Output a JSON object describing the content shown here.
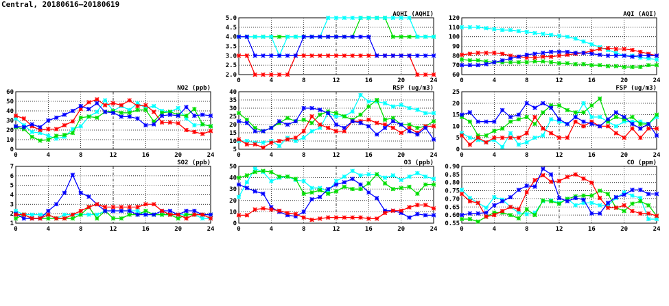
{
  "title": "Central, 20180616–20180619",
  "chart_data": [
    {
      "type": "line",
      "title": "AQHI (AQHI)",
      "ylim": [
        2.0,
        5.0
      ],
      "yticks": [
        "2.0",
        "2.5",
        "3.0",
        "3.5",
        "4.0",
        "4.5",
        "5.0"
      ],
      "xlim": [
        0,
        24
      ],
      "xticks": [
        "0",
        "4",
        "8",
        "12",
        "16",
        "20",
        "24"
      ],
      "grid": true,
      "series": [
        {
          "color": "#ff0000",
          "values": [
            3,
            3,
            2,
            2,
            2,
            2,
            2,
            3,
            3,
            3,
            3,
            3,
            3,
            3,
            3,
            3,
            3,
            3,
            3,
            3,
            3,
            3,
            2,
            2,
            2
          ]
        },
        {
          "color": "#00dd00",
          "values": [
            4,
            4,
            4,
            4,
            4,
            4,
            4,
            4,
            4,
            4,
            4,
            4,
            4,
            4,
            4,
            5,
            5,
            5,
            5,
            4,
            4,
            4,
            4,
            4,
            4
          ]
        },
        {
          "color": "#00ffff",
          "values": [
            4,
            4,
            4,
            4,
            4,
            3,
            4,
            4,
            4,
            4,
            4,
            5,
            5,
            5,
            5,
            5,
            5,
            5,
            5,
            5,
            5,
            5,
            4,
            4,
            4
          ]
        },
        {
          "color": "#0000ff",
          "values": [
            4,
            4,
            3,
            3,
            3,
            3,
            3,
            3,
            4,
            4,
            4,
            4,
            4,
            4,
            4,
            4,
            4,
            3,
            3,
            3,
            3,
            3,
            3,
            3,
            3
          ]
        }
      ]
    },
    {
      "type": "line",
      "title": "AQI (AQI)",
      "ylim": [
        60,
        120
      ],
      "yticks": [
        "60",
        "70",
        "80",
        "90",
        "100",
        "110",
        "120"
      ],
      "xlim": [
        0,
        24
      ],
      "xticks": [
        "0",
        "4",
        "8",
        "12",
        "16",
        "20",
        "24"
      ],
      "grid": true,
      "series": [
        {
          "color": "#00ffff",
          "values": [
            110,
            110,
            110,
            109,
            108,
            107,
            107,
            106,
            105,
            104,
            103,
            102,
            101,
            100,
            98,
            95,
            92,
            89,
            86,
            83,
            80,
            80,
            78,
            77,
            76
          ]
        },
        {
          "color": "#00dd00",
          "values": [
            76,
            75,
            75,
            74,
            73,
            73,
            73,
            73,
            73,
            74,
            74,
            73,
            72,
            72,
            71,
            71,
            70,
            70,
            69,
            69,
            68,
            68,
            68,
            70,
            70
          ]
        },
        {
          "color": "#ff0000",
          "values": [
            81,
            82,
            83,
            83,
            83,
            82,
            80,
            79,
            78,
            78,
            79,
            79,
            80,
            81,
            82,
            83,
            85,
            87,
            88,
            87,
            87,
            86,
            84,
            82,
            80
          ]
        },
        {
          "color": "#0000ff",
          "values": [
            70,
            70,
            70,
            71,
            73,
            75,
            77,
            79,
            81,
            82,
            83,
            84,
            84,
            84,
            83,
            83,
            82,
            81,
            80,
            80,
            80,
            79,
            80,
            80,
            80
          ]
        }
      ]
    },
    {
      "type": "line",
      "title": "NO2 (ppb)",
      "ylim": [
        0,
        60
      ],
      "yticks": [
        "0",
        "10",
        "20",
        "30",
        "40",
        "50",
        "60"
      ],
      "xlim": [
        0,
        24
      ],
      "xticks": [
        "0",
        "4",
        "8",
        "12",
        "16",
        "20",
        "24"
      ],
      "grid": true,
      "series": [
        {
          "color": "#00ffff",
          "values": [
            32,
            25,
            18,
            17,
            14,
            11,
            13,
            21,
            24,
            34,
            39,
            51,
            40,
            45,
            41,
            48,
            43,
            45,
            40,
            39,
            43,
            32,
            25,
            26,
            24
          ]
        },
        {
          "color": "#00dd00",
          "values": [
            23,
            21,
            13,
            9,
            10,
            14,
            15,
            17,
            33,
            34,
            33,
            39,
            40,
            38,
            38,
            41,
            41,
            29,
            38,
            39,
            36,
            35,
            42,
            26,
            24
          ]
        },
        {
          "color": "#ff0000",
          "values": [
            35,
            32,
            24,
            20,
            21,
            21,
            25,
            29,
            42,
            49,
            52,
            46,
            48,
            46,
            51,
            45,
            46,
            39,
            28,
            28,
            27,
            20,
            18,
            16,
            19
          ]
        },
        {
          "color": "#0000ff",
          "values": [
            24,
            23,
            26,
            23,
            30,
            33,
            36,
            40,
            45,
            42,
            48,
            39,
            38,
            34,
            34,
            32,
            25,
            26,
            35,
            36,
            35,
            44,
            35,
            36,
            35
          ]
        }
      ]
    },
    {
      "type": "line",
      "title": "RSP (ug/m3)",
      "ylim": [
        5,
        40
      ],
      "yticks": [
        "5",
        "10",
        "15",
        "20",
        "25",
        "30",
        "35",
        "40"
      ],
      "xlim": [
        0,
        24
      ],
      "xticks": [
        "0",
        "4",
        "8",
        "12",
        "16",
        "20",
        "24"
      ],
      "grid": true,
      "series": [
        {
          "color": "#00ffff",
          "values": [
            10,
            10,
            9,
            9,
            10,
            7,
            12,
            10,
            12,
            16,
            18,
            27,
            25,
            25,
            28,
            38,
            34,
            34,
            33,
            31,
            32,
            30,
            29,
            27,
            27
          ]
        },
        {
          "color": "#00dd00",
          "values": [
            27,
            23,
            18,
            16,
            18,
            21,
            24,
            22,
            23,
            21,
            26,
            28,
            27,
            25,
            23,
            26,
            31,
            35,
            23,
            24,
            20,
            20,
            18,
            19,
            22
          ]
        },
        {
          "color": "#ff0000",
          "values": [
            11,
            8,
            8,
            6,
            9,
            10,
            11,
            12,
            16,
            25,
            20,
            18,
            16,
            16,
            22,
            22,
            23,
            21,
            20,
            18,
            15,
            18,
            15,
            19,
            19
          ]
        },
        {
          "color": "#0000ff",
          "values": [
            22,
            21,
            16,
            16,
            18,
            22,
            20,
            22,
            30,
            30,
            29,
            27,
            20,
            18,
            22,
            21,
            19,
            14,
            18,
            22,
            20,
            16,
            14,
            18,
            11
          ]
        }
      ]
    },
    {
      "type": "line",
      "title": "FSP (ug/m3)",
      "ylim": [
        0,
        25
      ],
      "yticks": [
        "0",
        "5",
        "10",
        "15",
        "20",
        "25"
      ],
      "xlim": [
        0,
        24
      ],
      "xticks": [
        "0",
        "4",
        "8",
        "12",
        "16",
        "20",
        "24"
      ],
      "grid": true,
      "series": [
        {
          "color": "#00ffff",
          "values": [
            7,
            5,
            4,
            3,
            4,
            1,
            7,
            2,
            3,
            5,
            6,
            13,
            12,
            11,
            14,
            20,
            14,
            14,
            12,
            10,
            12,
            12,
            12,
            11,
            14
          ]
        },
        {
          "color": "#00dd00",
          "values": [
            14,
            12,
            6,
            6,
            8,
            9,
            12,
            13,
            14,
            11,
            16,
            19,
            19,
            17,
            16,
            16,
            19,
            22,
            12,
            14,
            13,
            14,
            11,
            11,
            15
          ]
        },
        {
          "color": "#ff0000",
          "values": [
            6,
            2,
            5,
            3,
            5,
            5,
            5,
            5,
            7,
            14,
            9,
            7,
            5,
            5,
            12,
            10,
            12,
            10,
            10,
            7,
            5,
            9,
            5,
            9,
            9
          ]
        },
        {
          "color": "#0000ff",
          "values": [
            15,
            16,
            12,
            12,
            12,
            17,
            14,
            15,
            20,
            18,
            20,
            18,
            13,
            11,
            14,
            12,
            11,
            10,
            13,
            16,
            14,
            11,
            9,
            11,
            6
          ]
        }
      ]
    },
    {
      "type": "line",
      "title": "SO2 (ppb)",
      "ylim": [
        1,
        7
      ],
      "yticks": [
        "1",
        "2",
        "3",
        "4",
        "5",
        "6",
        "7"
      ],
      "xlim": [
        0,
        24
      ],
      "xticks": [
        "0",
        "4",
        "8",
        "12",
        "16",
        "20",
        "24"
      ],
      "grid": true,
      "series": [
        {
          "color": "#00ffff",
          "values": [
            2.3,
            1.9,
            1.9,
            1.9,
            1.9,
            1.5,
            1.9,
            1.9,
            1.9,
            1.9,
            1.9,
            2.3,
            2.3,
            2.3,
            2.3,
            2.3,
            1.9,
            1.9,
            1.9,
            1.9,
            1.9,
            1.9,
            1.9,
            1.5,
            1.5
          ]
        },
        {
          "color": "#00dd00",
          "values": [
            1.5,
            1.9,
            1.5,
            1.5,
            1.5,
            1.5,
            1.5,
            1.5,
            1.9,
            2.7,
            1.5,
            2.3,
            1.5,
            1.5,
            1.9,
            1.9,
            2.3,
            1.9,
            1.9,
            1.9,
            1.5,
            1.9,
            1.9,
            1.9,
            1.9
          ]
        },
        {
          "color": "#0000ff",
          "values": [
            2.0,
            1.5,
            1.5,
            1.5,
            2.3,
            3.0,
            4.2,
            6.1,
            4.2,
            3.8,
            3.0,
            2.3,
            2.3,
            2.3,
            2.3,
            1.9,
            1.9,
            1.9,
            2.3,
            2.3,
            1.9,
            2.3,
            2.3,
            1.9,
            1.9
          ]
        },
        {
          "color": "#ff0000",
          "values": [
            1.9,
            1.9,
            1.5,
            1.5,
            1.9,
            1.5,
            1.5,
            1.9,
            2.3,
            2.7,
            3.0,
            2.7,
            2.7,
            2.7,
            2.7,
            2.7,
            3.0,
            3.0,
            2.3,
            1.9,
            1.9,
            1.5,
            1.9,
            1.9,
            1.5
          ]
        }
      ]
    },
    {
      "type": "line",
      "title": "O3 (ppb)",
      "ylim": [
        0,
        50
      ],
      "yticks": [
        "0",
        "10",
        "20",
        "30",
        "40",
        "50"
      ],
      "xlim": [
        0,
        24
      ],
      "xticks": [
        "0",
        "4",
        "8",
        "12",
        "16",
        "20",
        "24"
      ],
      "grid": true,
      "series": [
        {
          "color": "#00ffff",
          "values": [
            23,
            36,
            48,
            45,
            37,
            40,
            41,
            38,
            37,
            31,
            31,
            28,
            37,
            41,
            46,
            42,
            43,
            43,
            40,
            42,
            38,
            41,
            44,
            41,
            39
          ]
        },
        {
          "color": "#00dd00",
          "values": [
            40,
            42,
            45,
            46,
            45,
            41,
            41,
            39,
            26,
            27,
            29,
            26,
            28,
            32,
            30,
            30,
            35,
            43,
            35,
            30,
            31,
            32,
            26,
            34,
            34
          ]
        },
        {
          "color": "#0000ff",
          "values": [
            34,
            31,
            28,
            26,
            14,
            10,
            7,
            6,
            10,
            21,
            23,
            30,
            34,
            36,
            39,
            34,
            27,
            22,
            11,
            11,
            9,
            5,
            8,
            7,
            7
          ]
        },
        {
          "color": "#ff0000",
          "values": [
            7,
            7,
            12,
            13,
            12,
            11,
            9,
            8,
            5,
            3,
            4,
            5,
            5,
            5,
            5,
            5,
            4,
            4,
            9,
            11,
            11,
            14,
            16,
            16,
            13
          ]
        }
      ]
    },
    {
      "type": "line",
      "title": "CO (ppm)",
      "ylim": [
        0.55,
        0.9
      ],
      "yticks": [
        "0.55",
        "0.60",
        "0.65",
        "0.70",
        "0.75",
        "0.80",
        "0.85",
        "0.90"
      ],
      "xlim": [
        0,
        24
      ],
      "xticks": [
        "0",
        "4",
        "8",
        "12",
        "16",
        "20",
        "24"
      ],
      "grid": true,
      "series": [
        {
          "color": "#00ffff",
          "values": [
            0.755,
            0.705,
            0.675,
            0.645,
            0.71,
            0.695,
            0.65,
            0.615,
            0.605,
            0.615,
            0.685,
            0.69,
            0.675,
            0.7,
            0.66,
            0.675,
            0.675,
            0.66,
            0.66,
            0.705,
            0.74,
            0.72,
            0.705,
            0.575,
            0.575
          ]
        },
        {
          "color": "#00dd00",
          "values": [
            0.575,
            0.575,
            0.56,
            0.59,
            0.615,
            0.615,
            0.6,
            0.58,
            0.635,
            0.6,
            0.69,
            0.685,
            0.67,
            0.7,
            0.715,
            0.72,
            0.72,
            0.75,
            0.73,
            0.645,
            0.625,
            0.67,
            0.685,
            0.66,
            0.595
          ]
        },
        {
          "color": "#ff0000",
          "values": [
            0.73,
            0.685,
            0.675,
            0.59,
            0.6,
            0.625,
            0.65,
            0.635,
            0.74,
            0.815,
            0.845,
            0.805,
            0.81,
            0.835,
            0.85,
            0.825,
            0.8,
            0.705,
            0.645,
            0.645,
            0.66,
            0.625,
            0.61,
            0.61,
            0.595
          ]
        },
        {
          "color": "#0000ff",
          "values": [
            0.6,
            0.61,
            0.61,
            0.615,
            0.66,
            0.685,
            0.71,
            0.755,
            0.78,
            0.775,
            0.885,
            0.85,
            0.705,
            0.685,
            0.705,
            0.695,
            0.61,
            0.61,
            0.675,
            0.71,
            0.725,
            0.755,
            0.755,
            0.73,
            0.73
          ]
        }
      ]
    }
  ]
}
